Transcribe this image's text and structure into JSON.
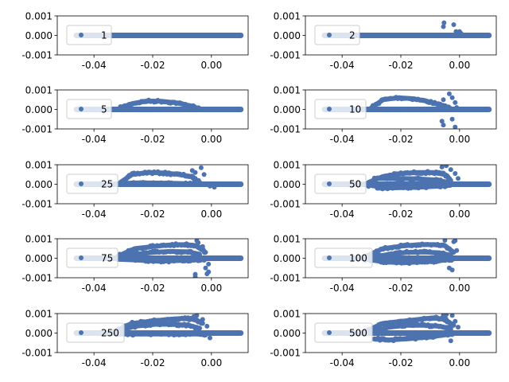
{
  "chart_data": {
    "type": "scatter",
    "marker_color": "#4c72b0",
    "xlim": [
      -0.0525,
      0.0125
    ],
    "ylim": [
      -0.001,
      0.001
    ],
    "xticks": [
      "-0.04",
      "-0.02",
      "0.00"
    ],
    "yticks": [
      "0.001",
      "0.000",
      "-0.001"
    ],
    "legend_position": "center-left",
    "grid": false,
    "panels": [
      {
        "label": "1",
        "segments": [],
        "points": []
      },
      {
        "label": "2",
        "segments": [],
        "points": [
          [
            -0.0053,
            0.00065
          ],
          [
            -0.0055,
            0.00045
          ],
          [
            -0.002,
            0.00055
          ],
          [
            -0.0012,
            0.0002
          ],
          [
            0.0,
            0.0002
          ],
          [
            0.0005,
            0.0001
          ]
        ]
      },
      {
        "label": "5",
        "segments": [
          {
            "xs": [
              -0.031,
              -0.027,
              -0.022,
              -0.017,
              -0.012,
              -0.007,
              -0.004
            ],
            "ys": [
              8e-05,
              0.0003,
              0.00043,
              0.00042,
              0.00034,
              0.00018,
              3e-05
            ]
          }
        ],
        "points": []
      },
      {
        "label": "10",
        "segments": [
          {
            "xs": [
              -0.03,
              -0.026,
              -0.021,
              -0.016,
              -0.011,
              -0.006,
              -0.003
            ],
            "ys": [
              0.0001,
              0.0005,
              0.0006,
              0.00055,
              0.00042,
              0.0002,
              5e-05
            ]
          }
        ],
        "points": [
          [
            -0.0055,
            0.0005
          ],
          [
            -0.0035,
            0.0008
          ],
          [
            -0.0025,
            0.0006
          ],
          [
            -0.0015,
            0.00035
          ],
          [
            -0.001,
            0.0001
          ],
          [
            -0.006,
            -0.0006
          ],
          [
            -0.0055,
            -0.0008
          ],
          [
            -0.0025,
            -0.0005
          ],
          [
            -0.0015,
            -0.0009
          ]
        ]
      },
      {
        "label": "25",
        "segments": [
          {
            "xs": [
              -0.031,
              -0.027,
              -0.022,
              -0.017,
              -0.012,
              -0.007,
              -0.004
            ],
            "ys": [
              0.0001,
              0.0005,
              0.0006,
              0.00058,
              0.00052,
              0.0004,
              0.0001
            ]
          },
          {
            "xs": [
              -0.031,
              -0.025,
              -0.018,
              -0.011,
              -0.005
            ],
            "ys": [
              3e-05,
              7e-05,
              6e-05,
              4e-05,
              1e-05
            ]
          }
        ],
        "points": [
          [
            -0.0065,
            0.0007
          ],
          [
            -0.0055,
            0.0006
          ],
          [
            -0.0035,
            0.00085
          ],
          [
            -0.0025,
            0.0005
          ],
          [
            -0.0005,
            -0.0001
          ],
          [
            0.001,
            -0.00015
          ]
        ]
      },
      {
        "label": "50",
        "segments": [
          {
            "xs": [
              -0.031,
              -0.026,
              -0.02,
              -0.014,
              -0.009,
              -0.005,
              -0.003
            ],
            "ys": [
              0.0001,
              0.0004,
              0.00055,
              0.0006,
              0.0006,
              0.0005,
              0.0002
            ]
          },
          {
            "xs": [
              -0.031,
              -0.025,
              -0.018,
              -0.011,
              -0.005,
              -0.002
            ],
            "ys": [
              -5e-05,
              -0.0001,
              -8e-05,
              -5e-05,
              -3e-05,
              1e-05
            ]
          },
          {
            "xs": [
              -0.029,
              -0.022,
              -0.015,
              -0.008,
              -0.004
            ],
            "ys": [
              0.0003,
              0.0003,
              0.00028,
              0.00022,
              0.0001
            ]
          },
          {
            "xs": [
              -0.028,
              -0.021,
              -0.014,
              -0.007,
              -0.003
            ],
            "ys": [
              -0.0002,
              -0.00018,
              -0.00015,
              -0.0001,
              -5e-05
            ]
          }
        ],
        "points": [
          [
            -0.006,
            0.00088
          ],
          [
            -0.0045,
            0.00095
          ],
          [
            -0.003,
            0.00075
          ],
          [
            -0.0015,
            0.00055
          ],
          [
            -0.0005,
            0.0003
          ]
        ]
      },
      {
        "label": "75",
        "segments": [
          {
            "xs": [
              -0.032,
              -0.026,
              -0.02,
              -0.014,
              -0.009,
              -0.005,
              -0.002
            ],
            "ys": [
              0.0001,
              0.0005,
              0.0006,
              0.00068,
              0.0007,
              0.00065,
              0.0003
            ]
          },
          {
            "xs": [
              -0.032,
              -0.026,
              -0.02,
              -0.014,
              -0.008,
              -0.004
            ],
            "ys": [
              2e-05,
              0.0002,
              0.0003,
              0.00035,
              0.00033,
              0.0002
            ]
          },
          {
            "xs": [
              -0.032,
              -0.025,
              -0.018,
              -0.011,
              -0.006,
              -0.002
            ],
            "ys": [
              -5e-05,
              -0.0001,
              -0.00015,
              -0.00012,
              -0.0001,
              -5e-05
            ]
          }
        ],
        "points": [
          [
            -0.005,
            0.0009
          ],
          [
            -0.0045,
            0.0008
          ],
          [
            -0.003,
            0.0006
          ],
          [
            -0.001,
            -0.0003
          ],
          [
            -0.002,
            -0.0005
          ],
          [
            -0.0015,
            -0.0008
          ],
          [
            -0.0055,
            -0.00082
          ],
          [
            -0.0055,
            -0.00095
          ],
          [
            -0.001,
            -0.0007
          ]
        ]
      },
      {
        "label": "100",
        "segments": [
          {
            "xs": [
              -0.032,
              -0.026,
              -0.02,
              -0.014,
              -0.009,
              -0.005,
              -0.002
            ],
            "ys": [
              0.0001,
              0.0005,
              0.00062,
              0.0007,
              0.0007,
              0.00065,
              0.0003
            ]
          },
          {
            "xs": [
              -0.03,
              -0.024,
              -0.018,
              -0.012,
              -0.007,
              -0.003
            ],
            "ys": [
              5e-05,
              0.0002,
              0.0003,
              0.00032,
              0.00028,
              0.00015
            ]
          },
          {
            "xs": [
              -0.032,
              -0.025,
              -0.018,
              -0.011,
              -0.005,
              -0.002
            ],
            "ys": [
              -5e-05,
              -0.0002,
              -0.00022,
              -0.00018,
              -0.0001,
              -3e-05
            ]
          }
        ],
        "points": [
          [
            -0.005,
            0.00092
          ],
          [
            -0.002,
            0.00085
          ],
          [
            -0.0015,
            0.0009
          ],
          [
            -0.001,
            0.0004
          ],
          [
            -0.0035,
            -0.0005
          ],
          [
            -0.0025,
            -0.0006
          ]
        ]
      },
      {
        "label": "250",
        "segments": [
          {
            "xs": [
              -0.033,
              -0.027,
              -0.021,
              -0.015,
              -0.01,
              -0.006,
              -0.003
            ],
            "ys": [
              0.0001,
              0.0005,
              0.0006,
              0.0007,
              0.00075,
              0.0007,
              0.0005
            ]
          },
          {
            "xs": [
              -0.033,
              -0.026,
              -0.019,
              -0.013,
              -0.008,
              -0.004
            ],
            "ys": [
              5e-05,
              0.00035,
              0.00045,
              0.00045,
              0.0004,
              0.00025
            ]
          },
          {
            "xs": [
              -0.032,
              -0.025,
              -0.018,
              -0.011,
              -0.005,
              -0.002
            ],
            "ys": [
              -5e-05,
              -5e-05,
              -5e-05,
              -5e-05,
              -5e-05,
              -0.0001
            ]
          }
        ],
        "points": [
          [
            -0.006,
            0.00085
          ],
          [
            -0.005,
            0.0009
          ],
          [
            -0.003,
            0.0007
          ],
          [
            -0.0015,
            0.00035
          ],
          [
            -0.0005,
            -0.00025
          ]
        ]
      },
      {
        "label": "500",
        "segments": [
          {
            "xs": [
              -0.032,
              -0.026,
              -0.02,
              -0.014,
              -0.009,
              -0.005,
              -0.002
            ],
            "ys": [
              0.0001,
              0.0005,
              0.0006,
              0.0007,
              0.00078,
              0.0007,
              0.0004
            ]
          },
          {
            "xs": [
              -0.03,
              -0.024,
              -0.018,
              -0.012,
              -0.007,
              -0.003
            ],
            "ys": [
              5e-05,
              0.0003,
              0.0004,
              0.0004,
              0.00035,
              0.0002
            ]
          },
          {
            "xs": [
              -0.029,
              -0.024,
              -0.018,
              -0.012,
              -0.006,
              -0.002
            ],
            "ys": [
              -0.0003,
              -0.00035,
              -0.0003,
              -0.00022,
              -0.00012,
              -3e-05
            ]
          }
        ],
        "points": [
          [
            -0.0055,
            0.00092
          ],
          [
            -0.0045,
            0.00095
          ],
          [
            -0.0025,
            0.0009
          ],
          [
            -0.0015,
            0.0006
          ],
          [
            -0.0005,
            0.0003
          ],
          [
            -0.003,
            -0.0004
          ]
        ]
      }
    ]
  }
}
